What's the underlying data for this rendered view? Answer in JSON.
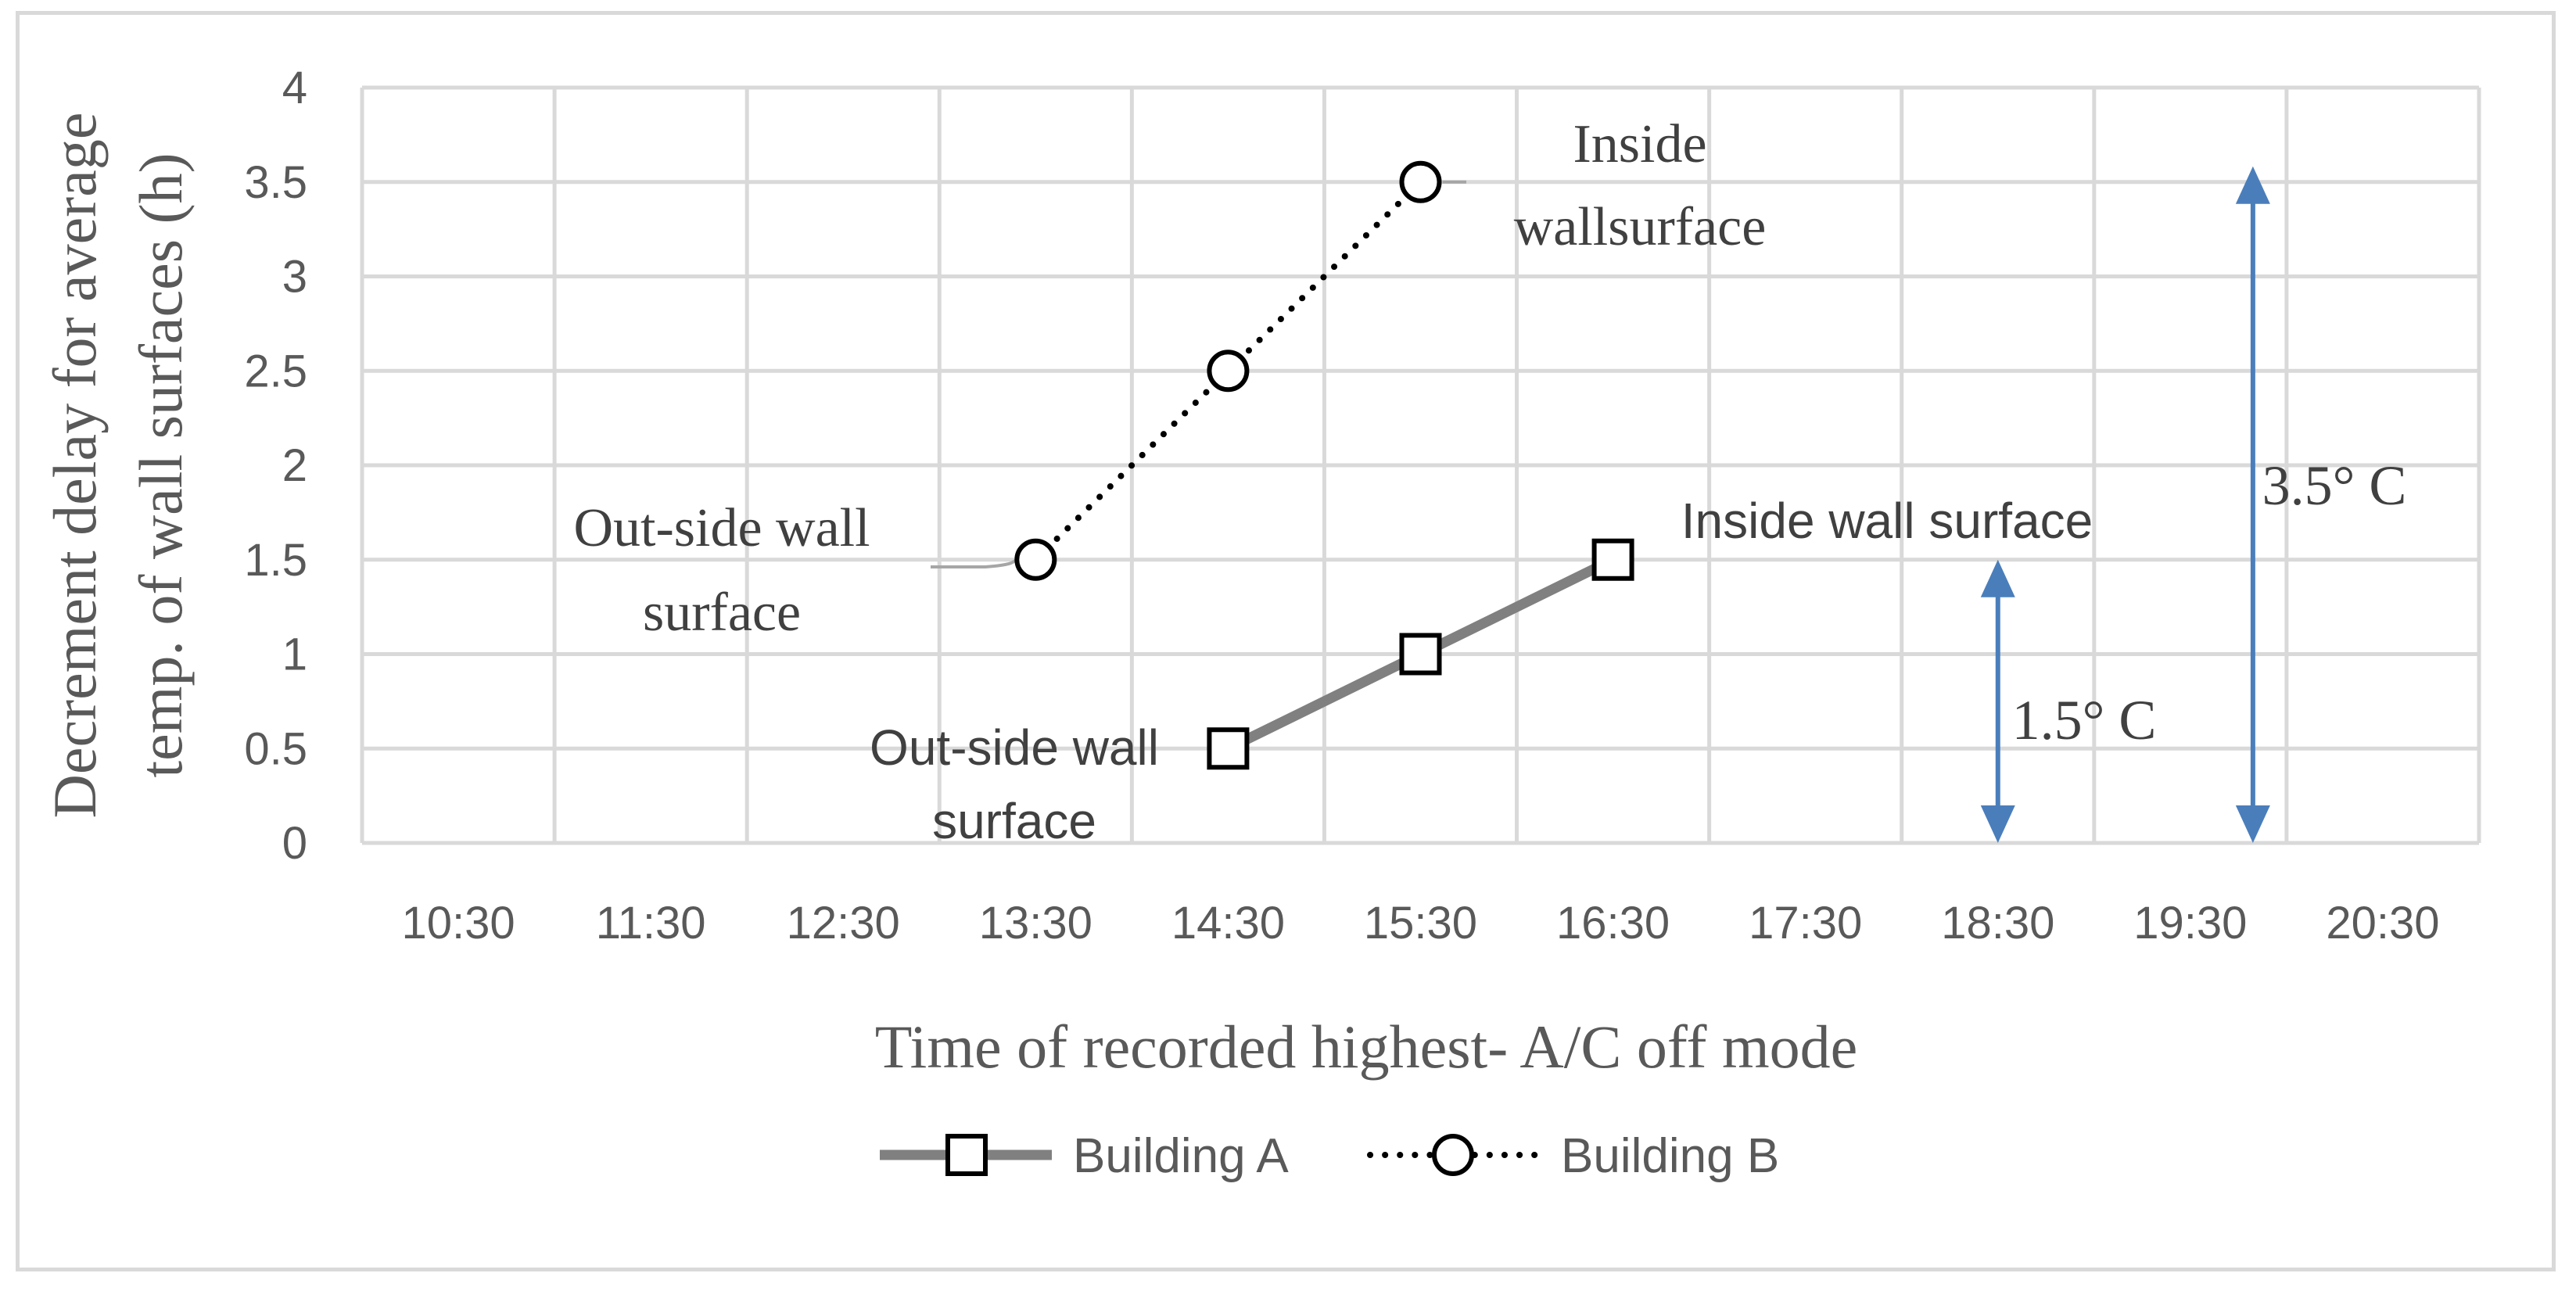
{
  "chart_data": {
    "type": "line",
    "xlabel": "Time of recorded highest- A/C off mode",
    "ylabel_lines": [
      "Decrement delay for average",
      "temp. of wall surfaces (h)"
    ],
    "categories": [
      "10:30",
      "11:30",
      "12:30",
      "13:30",
      "14:30",
      "15:30",
      "16:30",
      "17:30",
      "18:30",
      "19:30",
      "20:30"
    ],
    "yticks": [
      "0",
      "0.5",
      "1",
      "1.5",
      "2",
      "2.5",
      "3",
      "3.5",
      "4"
    ],
    "ylim": [
      0,
      4
    ],
    "grid": true,
    "legend_position": "bottom",
    "series": [
      {
        "name": "Building A",
        "color": "#808080",
        "line_style": "solid",
        "marker": "square",
        "points": [
          {
            "x": "14:30",
            "y": 0.5
          },
          {
            "x": "15:30",
            "y": 1.0
          },
          {
            "x": "16:30",
            "y": 1.5
          }
        ]
      },
      {
        "name": "Building B",
        "color": "#000000",
        "line_style": "dotted",
        "marker": "circle",
        "points": [
          {
            "x": "13:30",
            "y": 1.5
          },
          {
            "x": "14:30",
            "y": 2.5
          },
          {
            "x": "15:30",
            "y": 3.5
          }
        ]
      }
    ],
    "annotations": {
      "b_outside_line1": "Out-side wall",
      "b_outside_line2": "surface",
      "b_inside_line1": "Inside",
      "b_inside_line2": "wallsurface",
      "a_outside_line1": "Out-side  wall",
      "a_outside_line2": "surface",
      "a_inside": "Inside wall surface",
      "arrow_small_label": "1.5° C",
      "arrow_large_label": "3.5° C"
    },
    "arrows": [
      {
        "x_category": "18:30",
        "from": 0,
        "to": 1.5
      },
      {
        "x_category": "19:30",
        "from": 0,
        "to": 3.5
      }
    ],
    "arrow_color": "#4a7ebb"
  }
}
